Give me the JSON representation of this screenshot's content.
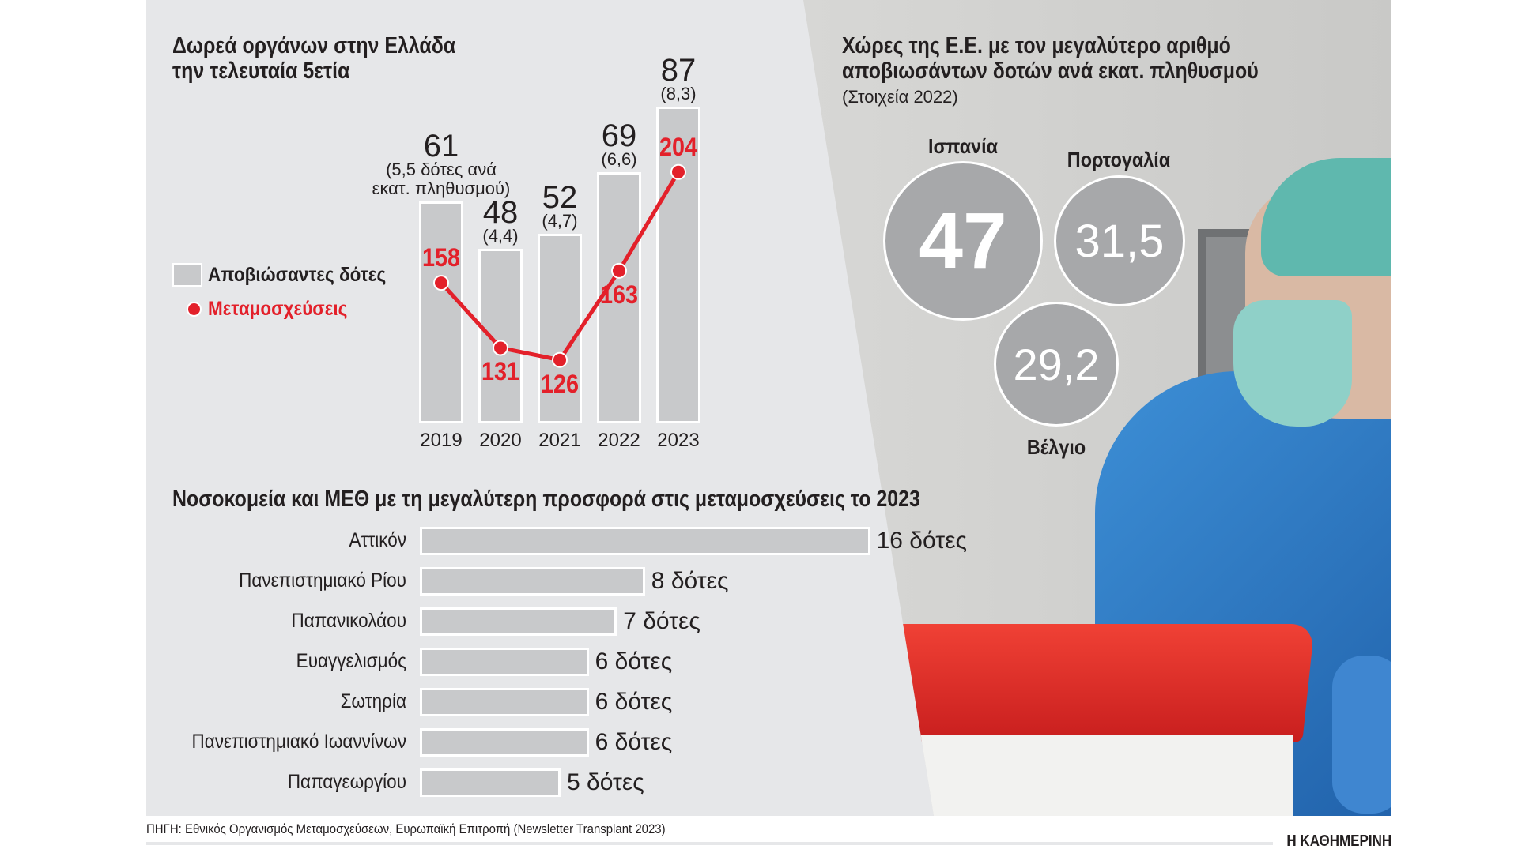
{
  "left_chart": {
    "title_line1": "Δωρεά οργάνων στην Ελλάδα",
    "title_line2": "την τελευταία 5ετία",
    "legend": {
      "donors": "Αποβιώσαντες δότες",
      "transplants": "Μεταμοσχεύσεις"
    },
    "first_note_line1": "(5,5 δότες ανά",
    "first_note_line2": "εκατ. πληθυσμού)"
  },
  "right_chart": {
    "title_line1": "Χώρες της Ε.Ε. με τον μεγαλύτερο αριθμό",
    "title_line2": "αποβιωσάντων δοτών ανά εκατ. πληθυσμού",
    "subtitle": "(Στοιχεία 2022)",
    "countries": [
      {
        "name": "Ισπανία",
        "value": "47"
      },
      {
        "name": "Πορτογαλία",
        "value": "31,5"
      },
      {
        "name": "Βέλγιο",
        "value": "29,2"
      }
    ]
  },
  "hospitals": {
    "title": "Νοσοκομεία και ΜΕΘ με τη μεγαλύτερη προσφορά στις μεταμοσχεύσεις το 2023"
  },
  "footer": {
    "source": "ΠΗΓΗ: Εθνικός Οργανισμός Μεταμοσχεύσεων, Ευρωπαϊκή Επιτροπή (Newsletter Transplant 2023)",
    "brand": "Η ΚΑΘΗΜΕΡΙΝΗ"
  },
  "colors": {
    "bar": "#c8c9cb",
    "red": "#e3202a",
    "circle": "#a7a8aa",
    "background": "#e6e7e9"
  },
  "chart_data": [
    {
      "type": "bar",
      "title": "Δωρεά οργάνων στην Ελλάδα την τελευταία 5ετία",
      "categories": [
        "2019",
        "2020",
        "2021",
        "2022",
        "2023"
      ],
      "series": [
        {
          "name": "Αποβιώσαντες δότες",
          "type": "bar",
          "values": [
            61,
            48,
            52,
            69,
            87
          ],
          "labels": [
            "61",
            "48",
            "52",
            "69",
            "87"
          ],
          "per_million": [
            "5,5",
            "(4,4)",
            "(4,7)",
            "(6,6)",
            "(8,3)"
          ]
        },
        {
          "name": "Μεταμοσχεύσεις",
          "type": "line",
          "values": [
            158,
            131,
            126,
            163,
            204
          ],
          "labels": [
            "158",
            "131",
            "126",
            "163",
            "204"
          ]
        }
      ]
    },
    {
      "type": "bar",
      "orientation": "horizontal",
      "title": "Νοσοκομεία και ΜΕΘ με τη μεγαλύτερη προσφορά στις μεταμοσχεύσεις το 2023",
      "categories": [
        "Αττικόν",
        "Πανεπιστημιακό Ρίου",
        "Παπανικολάου",
        "Ευαγγελισμός",
        "Σωτηρία",
        "Πανεπιστημιακό Ιωαννίνων",
        "Παπαγεωργίου"
      ],
      "values": [
        16,
        8,
        7,
        6,
        6,
        6,
        5
      ],
      "labels": [
        "16 δότες",
        "8 δότες",
        "7 δότες",
        "6 δότες",
        "6 δότες",
        "6 δότες",
        "5 δότες"
      ]
    }
  ]
}
